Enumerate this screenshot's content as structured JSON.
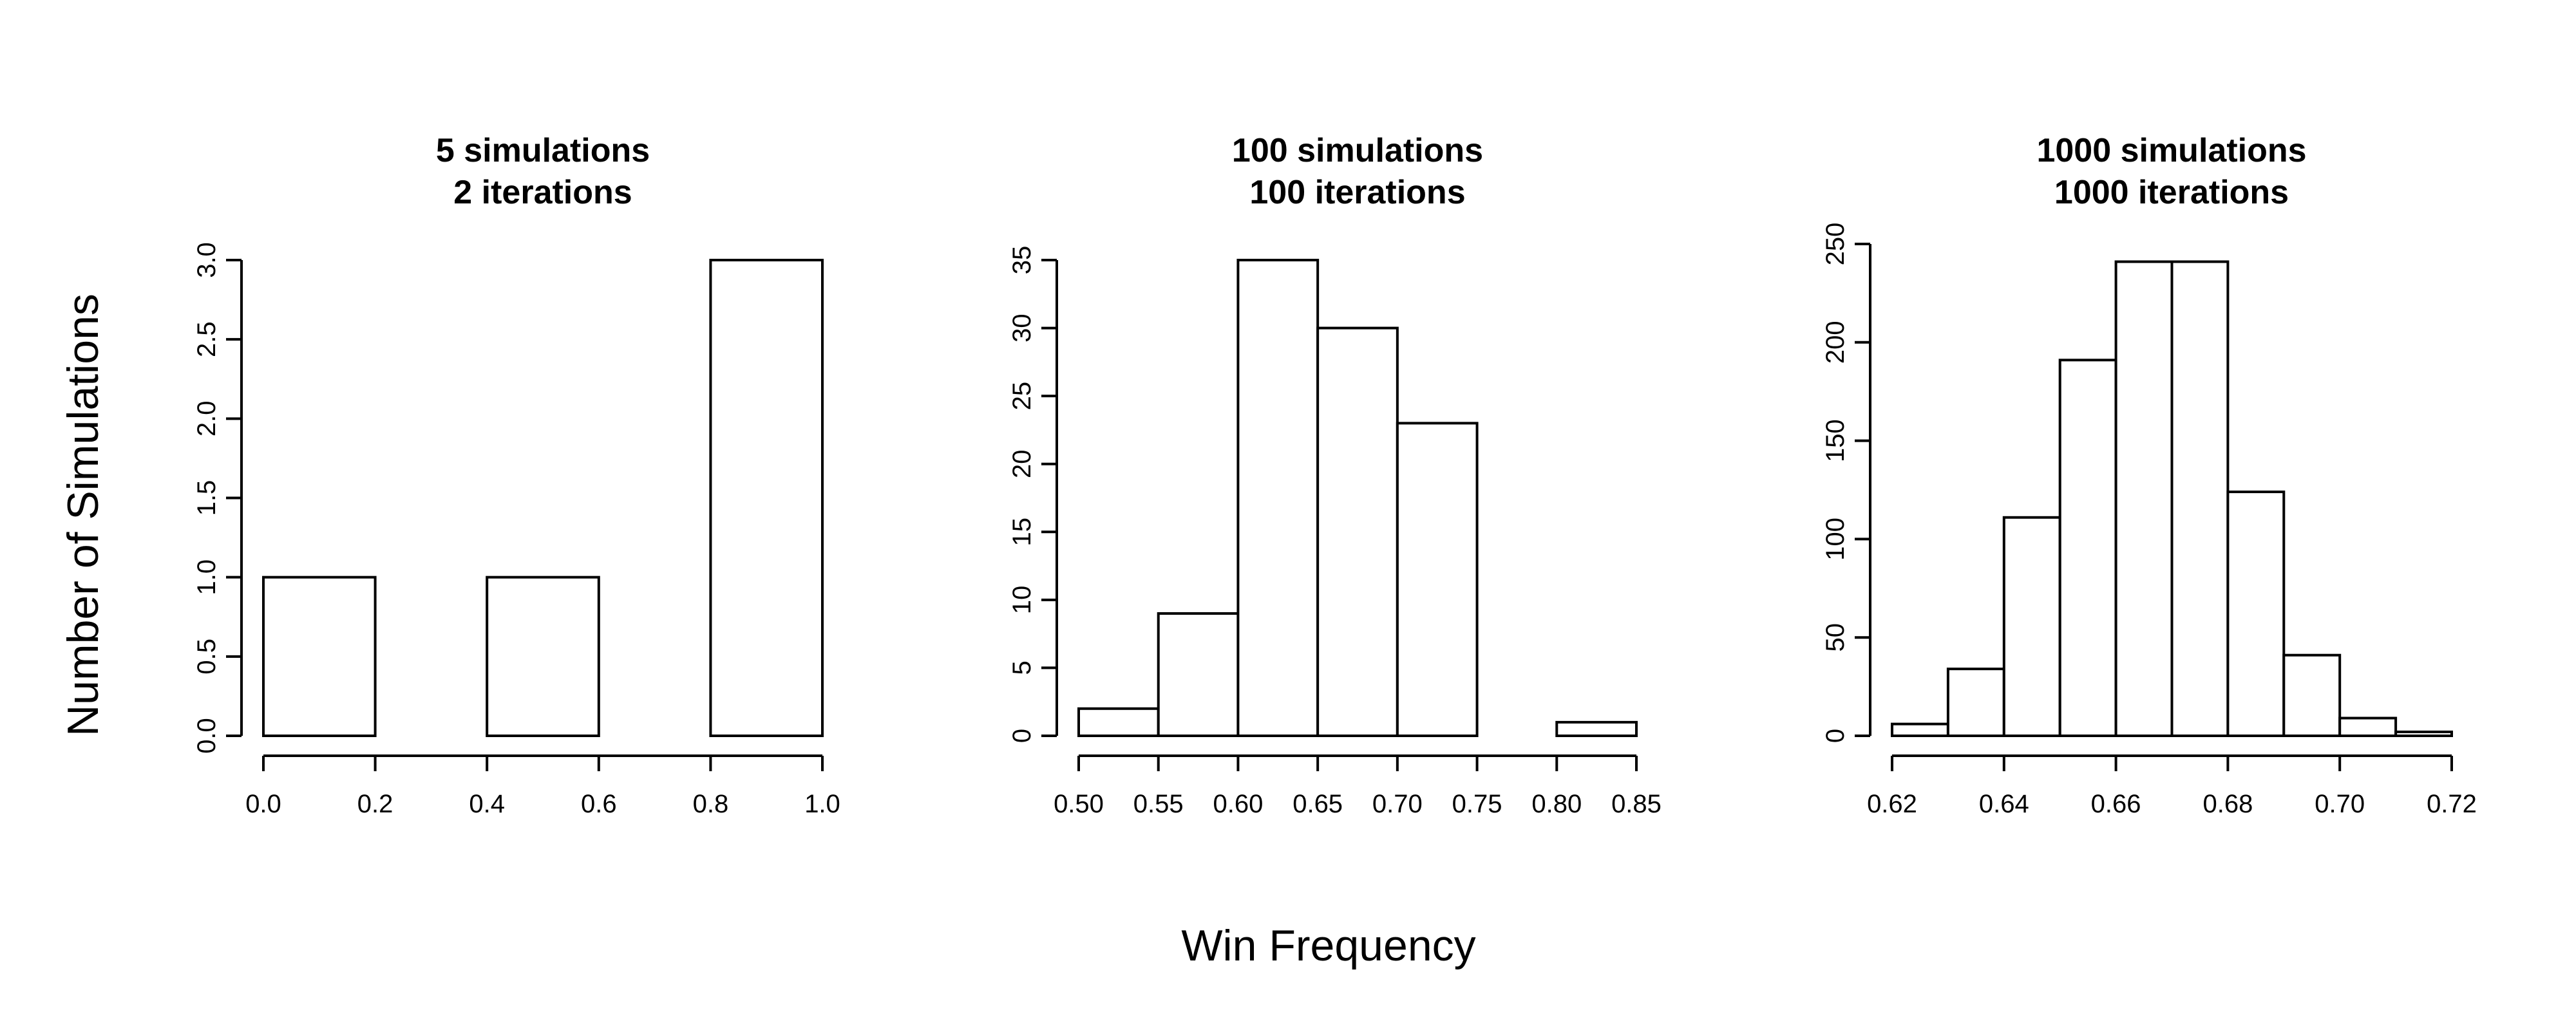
{
  "figure": {
    "ylabel": "Number of Simulations",
    "xlabel": "Win Frequency"
  },
  "chart_data": [
    {
      "type": "bar",
      "title_line1": "5 simulations",
      "title_line2": "2 iterations",
      "bins": [
        [
          0.0,
          0.2
        ],
        [
          0.2,
          0.4
        ],
        [
          0.4,
          0.6
        ],
        [
          0.6,
          0.8
        ],
        [
          0.8,
          1.0
        ]
      ],
      "values": [
        1,
        0,
        1,
        0,
        3
      ],
      "xlim": [
        0.0,
        1.0
      ],
      "ylim": [
        0,
        3.0
      ],
      "xticks": [
        0.0,
        0.2,
        0.4,
        0.6,
        0.8,
        1.0
      ],
      "xtick_labels": [
        "0.0",
        "0.2",
        "0.4",
        "0.6",
        "0.8",
        "1.0"
      ],
      "yticks": [
        0,
        0.5,
        1.0,
        1.5,
        2.0,
        2.5,
        3.0
      ],
      "ytick_labels": [
        "0.0",
        "0.5",
        "1.0",
        "1.5",
        "2.0",
        "2.5",
        "3.0"
      ],
      "grid": false
    },
    {
      "type": "bar",
      "title_line1": "100 simulations",
      "title_line2": "100 iterations",
      "bins": [
        [
          0.5,
          0.55
        ],
        [
          0.55,
          0.6
        ],
        [
          0.6,
          0.65
        ],
        [
          0.65,
          0.7
        ],
        [
          0.7,
          0.75
        ],
        [
          0.75,
          0.8
        ],
        [
          0.8,
          0.85
        ]
      ],
      "values": [
        2,
        9,
        35,
        30,
        23,
        0,
        1
      ],
      "xlim": [
        0.5,
        0.85
      ],
      "ylim": [
        0,
        35
      ],
      "xticks": [
        0.5,
        0.55,
        0.6,
        0.65,
        0.7,
        0.75,
        0.8,
        0.85
      ],
      "xtick_labels": [
        "0.50",
        "0.55",
        "0.60",
        "0.65",
        "0.70",
        "0.75",
        "0.80",
        "0.85"
      ],
      "yticks": [
        0,
        5,
        10,
        15,
        20,
        25,
        30,
        35
      ],
      "ytick_labels": [
        "0",
        "5",
        "10",
        "15",
        "20",
        "25",
        "30",
        "35"
      ],
      "grid": false
    },
    {
      "type": "bar",
      "title_line1": "1000 simulations",
      "title_line2": "1000 iterations",
      "bins": [
        [
          0.62,
          0.63
        ],
        [
          0.63,
          0.64
        ],
        [
          0.64,
          0.65
        ],
        [
          0.65,
          0.66
        ],
        [
          0.66,
          0.67
        ],
        [
          0.67,
          0.68
        ],
        [
          0.68,
          0.69
        ],
        [
          0.69,
          0.7
        ],
        [
          0.7,
          0.71
        ],
        [
          0.71,
          0.72
        ]
      ],
      "values": [
        6,
        34,
        111,
        191,
        241,
        241,
        124,
        41,
        9,
        2
      ],
      "xlim": [
        0.62,
        0.72
      ],
      "ylim": [
        0,
        250
      ],
      "xticks": [
        0.62,
        0.64,
        0.66,
        0.68,
        0.7,
        0.72
      ],
      "xtick_labels": [
        "0.62",
        "0.64",
        "0.66",
        "0.68",
        "0.70",
        "0.72"
      ],
      "yticks": [
        0,
        50,
        100,
        150,
        200,
        250
      ],
      "ytick_labels": [
        "0",
        "50",
        "100",
        "150",
        "200",
        "250"
      ],
      "grid": false
    }
  ]
}
